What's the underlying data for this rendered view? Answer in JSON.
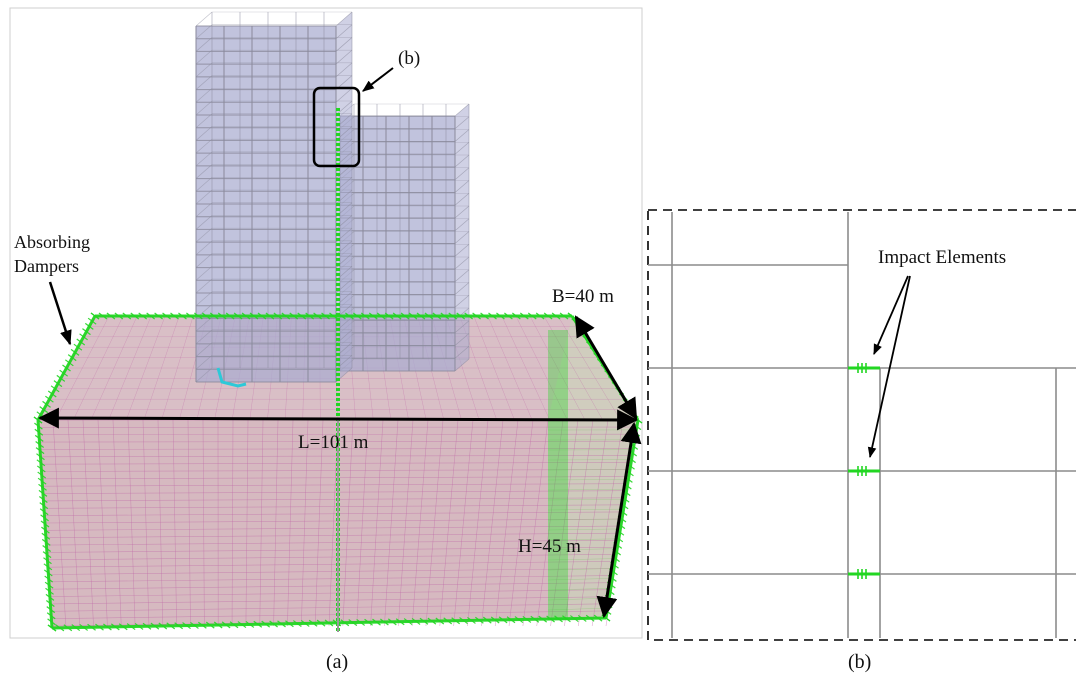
{
  "panel_a": {
    "caption": "(a)",
    "callout_b": "(b)",
    "dampers_label_line1": "Absorbing",
    "dampers_label_line2": "Dampers",
    "dim_B": "B=40 m",
    "dim_L": "L=101 m",
    "dim_H": "H=45 m"
  },
  "panel_b": {
    "caption": "(b)",
    "impact_label": "Impact Elements"
  },
  "colors": {
    "soil_face": "#dcc3c6",
    "soil_grid": "#c06aa8",
    "tower": "#a9acd0",
    "frame": "#8a8a9c",
    "damper_green": "#22d622",
    "annotation": "#000000"
  }
}
